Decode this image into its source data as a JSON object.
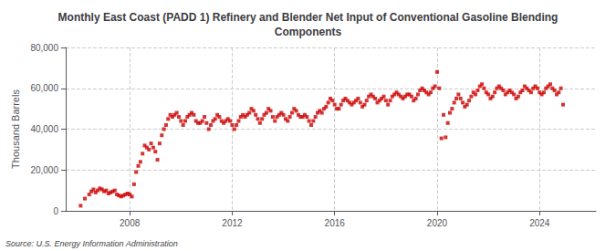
{
  "chart_data": {
    "type": "scatter",
    "title": "Monthly East Coast (PADD 1) Refinery and Blender Net Input of Conventional Gasoline Blending\nComponents",
    "ylabel": "Thousand Barrels",
    "source": "Source: U.S. Energy Information Administration",
    "color": "#cc0000",
    "marker": "square",
    "grid": true,
    "xlim": [
      2005.5,
      2026.2
    ],
    "ylim": [
      0,
      80000
    ],
    "xticks": [
      2008,
      2012,
      2016,
      2020,
      2024
    ],
    "yticks": [
      0,
      {
        "value": 20000,
        "label": "20,000"
      },
      {
        "value": 40000,
        "label": "40,000"
      },
      {
        "value": 60000,
        "label": "60,000"
      },
      {
        "value": 80000,
        "label": "80,000"
      }
    ],
    "x": [
      2006.083,
      2006.25,
      2006.417,
      2006.5,
      2006.583,
      2006.667,
      2006.75,
      2006.833,
      2006.917,
      2007.0,
      2007.083,
      2007.167,
      2007.25,
      2007.333,
      2007.417,
      2007.5,
      2007.583,
      2007.667,
      2007.75,
      2007.833,
      2007.917,
      2008.0,
      2008.083,
      2008.167,
      2008.25,
      2008.333,
      2008.417,
      2008.5,
      2008.583,
      2008.667,
      2008.75,
      2008.833,
      2008.917,
      2009.0,
      2009.083,
      2009.167,
      2009.25,
      2009.333,
      2009.417,
      2009.5,
      2009.583,
      2009.667,
      2009.75,
      2009.833,
      2009.917,
      2010.0,
      2010.083,
      2010.167,
      2010.25,
      2010.333,
      2010.417,
      2010.5,
      2010.583,
      2010.667,
      2010.75,
      2010.833,
      2010.917,
      2011.0,
      2011.083,
      2011.167,
      2011.25,
      2011.333,
      2011.417,
      2011.5,
      2011.583,
      2011.667,
      2011.75,
      2011.833,
      2011.917,
      2012.0,
      2012.083,
      2012.167,
      2012.25,
      2012.333,
      2012.417,
      2012.5,
      2012.583,
      2012.667,
      2012.75,
      2012.833,
      2012.917,
      2013.0,
      2013.083,
      2013.167,
      2013.25,
      2013.333,
      2013.417,
      2013.5,
      2013.583,
      2013.667,
      2013.75,
      2013.833,
      2013.917,
      2014.0,
      2014.083,
      2014.167,
      2014.25,
      2014.333,
      2014.417,
      2014.5,
      2014.583,
      2014.667,
      2014.75,
      2014.833,
      2014.917,
      2015.0,
      2015.083,
      2015.167,
      2015.25,
      2015.333,
      2015.417,
      2015.5,
      2015.583,
      2015.667,
      2015.75,
      2015.833,
      2015.917,
      2016.0,
      2016.083,
      2016.167,
      2016.25,
      2016.333,
      2016.417,
      2016.5,
      2016.583,
      2016.667,
      2016.75,
      2016.833,
      2016.917,
      2017.0,
      2017.083,
      2017.167,
      2017.25,
      2017.333,
      2017.417,
      2017.5,
      2017.583,
      2017.667,
      2017.75,
      2017.833,
      2017.917,
      2018.0,
      2018.083,
      2018.167,
      2018.25,
      2018.333,
      2018.417,
      2018.5,
      2018.583,
      2018.667,
      2018.75,
      2018.833,
      2018.917,
      2019.0,
      2019.083,
      2019.167,
      2019.25,
      2019.333,
      2019.417,
      2019.5,
      2019.583,
      2019.667,
      2019.75,
      2019.833,
      2019.917,
      2020.0,
      2020.083,
      2020.167,
      2020.25,
      2020.333,
      2020.417,
      2020.5,
      2020.583,
      2020.667,
      2020.75,
      2020.833,
      2020.917,
      2021.0,
      2021.083,
      2021.167,
      2021.25,
      2021.333,
      2021.417,
      2021.5,
      2021.583,
      2021.667,
      2021.75,
      2021.833,
      2021.917,
      2022.0,
      2022.083,
      2022.167,
      2022.25,
      2022.333,
      2022.417,
      2022.5,
      2022.583,
      2022.667,
      2022.75,
      2022.833,
      2022.917,
      2023.0,
      2023.083,
      2023.167,
      2023.25,
      2023.333,
      2023.417,
      2023.5,
      2023.583,
      2023.667,
      2023.75,
      2023.833,
      2023.917,
      2024.0,
      2024.083,
      2024.167,
      2024.25,
      2024.333,
      2024.417,
      2024.5,
      2024.583,
      2024.667,
      2024.75,
      2024.833,
      2024.917
    ],
    "values": [
      2500,
      6000,
      8000,
      9500,
      10500,
      9000,
      10000,
      11000,
      10500,
      9500,
      10000,
      8500,
      9000,
      9500,
      10000,
      8000,
      7500,
      7000,
      7500,
      8000,
      8500,
      8000,
      7000,
      13000,
      19000,
      22000,
      24000,
      28000,
      32000,
      31000,
      30000,
      33000,
      31000,
      29000,
      25000,
      33000,
      37000,
      40000,
      42000,
      45000,
      47000,
      46000,
      47000,
      48000,
      46000,
      44000,
      42000,
      44000,
      46000,
      47000,
      48000,
      47000,
      44000,
      43000,
      43000,
      44000,
      46000,
      43000,
      40000,
      42000,
      44000,
      45000,
      47000,
      46000,
      44000,
      43000,
      44000,
      45000,
      44000,
      42000,
      40000,
      42000,
      44000,
      46000,
      47000,
      46000,
      47000,
      48000,
      50000,
      49000,
      47000,
      45000,
      43000,
      45000,
      47000,
      48000,
      50000,
      49000,
      46000,
      44000,
      46000,
      47000,
      48000,
      47000,
      45000,
      44000,
      46000,
      48000,
      50000,
      49000,
      47000,
      46000,
      46000,
      47000,
      46000,
      44000,
      42000,
      44000,
      46000,
      48000,
      49000,
      48000,
      50000,
      51000,
      53000,
      55000,
      54000,
      52000,
      50000,
      50000,
      52000,
      54000,
      55000,
      54000,
      53000,
      52000,
      53000,
      54000,
      55000,
      53000,
      51000,
      52000,
      54000,
      56000,
      57000,
      56000,
      55000,
      53000,
      54000,
      55000,
      56000,
      54000,
      52000,
      54000,
      56000,
      57000,
      58000,
      57000,
      56000,
      55000,
      56000,
      57000,
      57000,
      56000,
      54000,
      55000,
      57000,
      59000,
      60000,
      59000,
      58000,
      57000,
      58000,
      60000,
      61000,
      68000,
      60000,
      35500,
      47000,
      36000,
      43000,
      48000,
      50000,
      53000,
      55000,
      57000,
      55000,
      53000,
      51000,
      52000,
      54000,
      56000,
      58000,
      57000,
      59000,
      61000,
      62000,
      60000,
      58000,
      57000,
      55000,
      56000,
      58000,
      60000,
      61000,
      60000,
      59000,
      57000,
      58000,
      59000,
      58000,
      57000,
      55000,
      56000,
      58000,
      59000,
      61000,
      60000,
      59000,
      58000,
      60000,
      61000,
      60000,
      58000,
      57000,
      58000,
      60000,
      61000,
      62000,
      60000,
      59000,
      57000,
      58000,
      60000,
      52000
    ]
  }
}
